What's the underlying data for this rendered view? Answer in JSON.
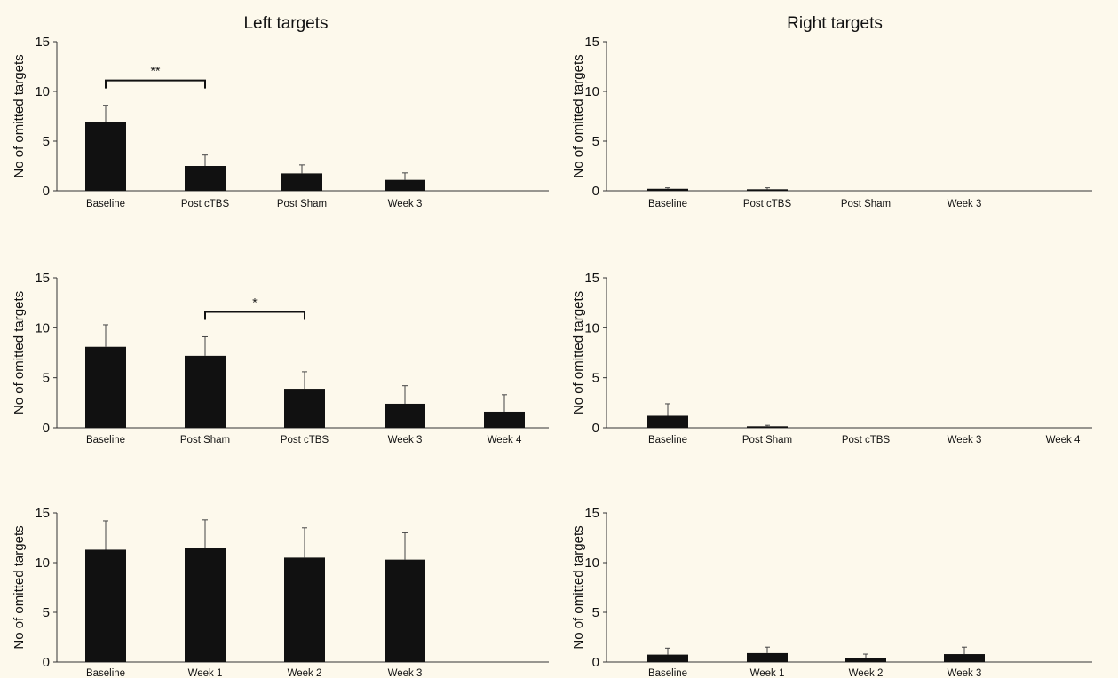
{
  "columns": [
    "Left targets",
    "Right targets"
  ],
  "chart_data": [
    {
      "type": "bar",
      "panel": "left-row1",
      "ylabel": "No of omitted targets",
      "ylim": [
        0,
        15
      ],
      "yticks": [
        0,
        5,
        10,
        15
      ],
      "categories": [
        "Baseline",
        "Post cTBS",
        "Post Sham",
        "Week 3"
      ],
      "values": [
        6.9,
        2.5,
        1.75,
        1.1
      ],
      "errors": [
        1.7,
        1.1,
        0.85,
        0.7
      ],
      "significance": [
        {
          "from": 0,
          "to": 1,
          "label": "**"
        }
      ]
    },
    {
      "type": "bar",
      "panel": "right-row1",
      "ylabel": "No of omitted targets",
      "ylim": [
        0,
        15
      ],
      "yticks": [
        0,
        5,
        10,
        15
      ],
      "categories": [
        "Baseline",
        "Post cTBS",
        "Post Sham",
        "Week 3"
      ],
      "values": [
        0.2,
        0.15,
        0,
        0
      ],
      "errors": [
        0.1,
        0.15,
        0,
        0
      ],
      "significance": []
    },
    {
      "type": "bar",
      "panel": "left-row2",
      "ylabel": "No of omitted targets",
      "ylim": [
        0,
        15
      ],
      "yticks": [
        0,
        5,
        10,
        15
      ],
      "categories": [
        "Baseline",
        "Post Sham",
        "Post cTBS",
        "Week 3",
        "Week 4"
      ],
      "values": [
        8.1,
        7.2,
        3.9,
        2.4,
        1.6
      ],
      "errors": [
        2.2,
        1.9,
        1.7,
        1.8,
        1.7
      ],
      "significance": [
        {
          "from": 1,
          "to": 2,
          "label": "*"
        }
      ]
    },
    {
      "type": "bar",
      "panel": "right-row2",
      "ylabel": "No of omitted targets",
      "ylim": [
        0,
        15
      ],
      "yticks": [
        0,
        5,
        10,
        15
      ],
      "categories": [
        "Baseline",
        "Post Sham",
        "Post cTBS",
        "Week 3",
        "Week 4"
      ],
      "values": [
        1.2,
        0.15,
        0,
        0,
        0
      ],
      "errors": [
        1.2,
        0.1,
        0,
        0,
        0
      ],
      "significance": []
    },
    {
      "type": "bar",
      "panel": "left-row3",
      "ylabel": "No of omitted targets",
      "ylim": [
        0,
        15
      ],
      "yticks": [
        0,
        5,
        10,
        15
      ],
      "categories": [
        "Baseline",
        "Week 1",
        "Week 2",
        "Week 3"
      ],
      "values": [
        11.3,
        11.5,
        10.5,
        10.3
      ],
      "errors": [
        2.9,
        2.8,
        3.0,
        2.7
      ],
      "significance": []
    },
    {
      "type": "bar",
      "panel": "right-row3",
      "ylabel": "No of omitted targets",
      "ylim": [
        0,
        15
      ],
      "yticks": [
        0,
        5,
        10,
        15
      ],
      "categories": [
        "Baseline",
        "Week 1",
        "Week 2",
        "Week 3"
      ],
      "values": [
        0.75,
        0.9,
        0.4,
        0.8
      ],
      "errors": [
        0.65,
        0.6,
        0.4,
        0.7
      ],
      "significance": []
    }
  ]
}
